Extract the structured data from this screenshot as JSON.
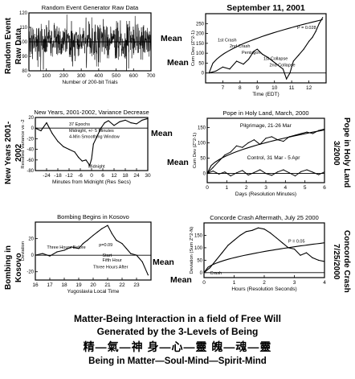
{
  "caption": {
    "line1": "Matter-Being Interaction in a field of Free Will",
    "line2": "Generated by the 3-Levels of Being",
    "line3": "精—氣—神  身—心—靈  魄—魂—靈",
    "line4": "Being in Matter—Soul-Mind—Spirit-Mind"
  },
  "side_labels": {
    "p1": "Random Event Raw Data",
    "p3": "New Years 2001-2002",
    "p5": "Bombing in Kosovo",
    "p4": "Pope in Holy Land 3/2000",
    "p6": "Concorde Crash 7/25/2000"
  },
  "mean_label": "Mean",
  "chart_data": [
    {
      "id": "p1",
      "type": "line",
      "title": "Random Event Generator Raw Data",
      "xlabel": "Number of 200-bit Trials",
      "ylabel": "",
      "xlim": [
        0,
        700
      ],
      "ylim": [
        80,
        120
      ],
      "xticks": [
        0,
        100,
        200,
        300,
        400,
        500,
        600,
        700
      ],
      "yticks": [
        80,
        90,
        100,
        110,
        120
      ],
      "noise": {
        "n": 600,
        "mean": 100,
        "sd": 7,
        "seed": 11
      },
      "values": []
    },
    {
      "id": "p2",
      "type": "line",
      "title": "September 11, 2001",
      "xlabel": "Time (EDT)",
      "ylabel": "Cum Dev (Z^2-1)",
      "xlim": [
        6,
        13
      ],
      "ylim": [
        -50,
        300
      ],
      "xticks": [
        7,
        8,
        9,
        10,
        11,
        12
      ],
      "yticks": [
        0,
        50,
        100,
        150,
        200,
        250
      ],
      "x": [
        6.2,
        6.6,
        7.0,
        7.4,
        7.8,
        8.2,
        8.5,
        8.8,
        9.0,
        9.3,
        9.6,
        9.9,
        10.2,
        10.5,
        10.7,
        10.9,
        11.1,
        11.4,
        11.7,
        12.0,
        12.2,
        12.4,
        12.6,
        12.8
      ],
      "y": [
        0,
        10,
        30,
        20,
        60,
        45,
        70,
        110,
        120,
        95,
        80,
        60,
        40,
        20,
        -30,
        0,
        60,
        90,
        120,
        160,
        180,
        210,
        250,
        280
      ],
      "envelope": {
        "x": [
          6.2,
          12.8
        ],
        "k": 105
      },
      "annotations": [
        "1st Crash",
        "2nd Crash",
        "Pentagon",
        "1st Collapse",
        "2nd Collapse",
        "P = 0.028"
      ]
    },
    {
      "id": "p3",
      "type": "line",
      "title": "New Years, 2001-2002, Variance Decrease",
      "xlabel": "Minutes from Midnight (Res Secs)",
      "ylabel": "Resulted Variance vs -2",
      "xlim": [
        -30,
        30
      ],
      "ylim": [
        -80,
        20
      ],
      "xticks": [
        -24,
        -18,
        -12,
        -6,
        0,
        6,
        12,
        18,
        24,
        30
      ],
      "yticks": [
        -80,
        -60,
        -40,
        -20,
        0,
        20
      ],
      "x": [
        -30,
        -27,
        -24,
        -21,
        -18,
        -15,
        -12,
        -9,
        -7,
        -5,
        -3,
        -1,
        0,
        1,
        3,
        5,
        7,
        9,
        12,
        15,
        18,
        21,
        24,
        27,
        30
      ],
      "y": [
        0,
        -5,
        10,
        -10,
        -25,
        -35,
        -40,
        -45,
        -55,
        -62,
        -60,
        -70,
        -58,
        -30,
        -15,
        0,
        10,
        14,
        5,
        12,
        15,
        10,
        8,
        15,
        18
      ],
      "annotations": [
        "37 Epochs",
        "Midnight, +/- 5 Minutes",
        "4-Min Smoothing Window",
        "Midnight"
      ]
    },
    {
      "id": "p4",
      "type": "line",
      "title": "Pope in Holy Land, March, 2000",
      "xlabel": "Days (Resolution Minutes)",
      "ylabel": "Cum Dev (Z^2-1)",
      "xlim": [
        0,
        6
      ],
      "ylim": [
        -30,
        180
      ],
      "xticks": [
        0,
        1,
        2,
        3,
        4,
        5,
        6
      ],
      "yticks": [
        0,
        50,
        100,
        150
      ],
      "series": [
        {
          "name": "Pilgrimage, 21-26 Mar",
          "x": [
            0,
            0.3,
            0.6,
            0.9,
            1.2,
            1.5,
            1.8,
            2.1,
            2.4,
            2.7,
            3.0,
            3.3,
            3.6,
            3.9,
            4.2,
            4.5,
            4.8,
            5.1,
            5.4,
            5.7,
            6.0
          ],
          "y": [
            0,
            20,
            40,
            60,
            70,
            90,
            85,
            100,
            110,
            95,
            115,
            120,
            110,
            105,
            120,
            125,
            130,
            135,
            130,
            140,
            145
          ]
        },
        {
          "name": "Control, 31 Mar - 5 Apr",
          "x": [
            0,
            0.3,
            0.6,
            0.9,
            1.2,
            1.5,
            1.8,
            2.1,
            2.4,
            2.7,
            3.0,
            3.3,
            3.6,
            3.9,
            4.2,
            4.5,
            4.8,
            5.1,
            5.4,
            5.7,
            6.0
          ],
          "y": [
            0,
            8,
            -2,
            5,
            -8,
            2,
            10,
            -5,
            3,
            12,
            0,
            -6,
            5,
            12,
            2,
            -8,
            6,
            12,
            4,
            -4,
            5
          ]
        }
      ],
      "envelope": {
        "x": [
          0,
          6
        ],
        "k": 58
      }
    },
    {
      "id": "p5",
      "type": "line",
      "title": "Bombing Begins in Kosovo",
      "xlabel": "Yugoslavia Local Time",
      "ylabel": "Deviation",
      "xlim": [
        16,
        24
      ],
      "ylim": [
        -30,
        40
      ],
      "xticks": [
        16,
        17,
        18,
        19,
        20,
        21,
        22,
        23
      ],
      "yticks": [
        -20,
        0,
        20
      ],
      "x": [
        16,
        16.5,
        17,
        17.5,
        18,
        18.5,
        19,
        19.3,
        19.6,
        20,
        20.3,
        20.6,
        21,
        21.3,
        21.6,
        22,
        22.3,
        22.6,
        23,
        23.4,
        23.8
      ],
      "y": [
        0,
        2,
        -1,
        4,
        6,
        10,
        8,
        14,
        18,
        24,
        28,
        32,
        36,
        26,
        18,
        14,
        8,
        2,
        0,
        -8,
        -24
      ],
      "annotations": [
        "Three Hours Before",
        "p=0.09",
        "Three Hours After",
        "Start",
        "Fifth Hour"
      ]
    },
    {
      "id": "p6",
      "type": "line",
      "title": "Concorde Crash Aftermath, July 25 2000",
      "xlabel": "Hours (Resolution Seconds)",
      "ylabel": "Deviation (Sum Z^2-N)",
      "xlim": [
        0,
        4
      ],
      "ylim": [
        -20,
        200
      ],
      "xticks": [
        0,
        1,
        2,
        3,
        4
      ],
      "yticks": [
        0,
        50,
        100,
        150
      ],
      "x": [
        0,
        0.2,
        0.4,
        0.6,
        0.8,
        1.0,
        1.2,
        1.4,
        1.6,
        1.8,
        2.0,
        2.2,
        2.4,
        2.6,
        2.8,
        3.0,
        3.2,
        3.4,
        3.6,
        3.8,
        4.0
      ],
      "y": [
        0,
        20,
        50,
        80,
        110,
        130,
        150,
        165,
        170,
        180,
        175,
        160,
        140,
        120,
        100,
        95,
        70,
        80,
        60,
        50,
        45
      ],
      "envelope": {
        "x": [
          0,
          4
        ],
        "k": 60
      },
      "annotations": [
        "Crash",
        "P = 0.05"
      ]
    }
  ]
}
